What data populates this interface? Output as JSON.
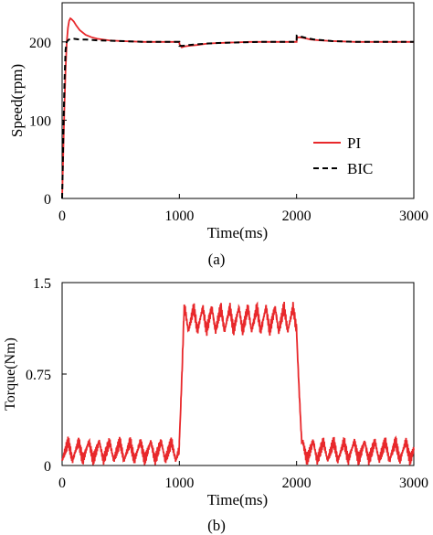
{
  "chart_data": [
    {
      "type": "line",
      "caption": "(a)",
      "xlabel": "Time(ms)",
      "ylabel": "Speed(rpm)",
      "xlim": [
        0,
        3000
      ],
      "ylim": [
        0,
        250
      ],
      "xticks": [
        0,
        1000,
        2000,
        3000
      ],
      "xtick_labels": [
        "0",
        "1000",
        "2000",
        "3000"
      ],
      "yticks": [
        0,
        100,
        200
      ],
      "ytick_labels": [
        "0",
        "100",
        "200"
      ],
      "grid": false,
      "legend": "lower-right",
      "series": [
        {
          "name": "PI",
          "color": "#e8282b",
          "style": "solid",
          "x": [
            0,
            10,
            20,
            30,
            40,
            50,
            60,
            70,
            80,
            100,
            120,
            150,
            200,
            250,
            300,
            400,
            500,
            700,
            1000,
            1001,
            1020,
            1040,
            1080,
            1150,
            1250,
            1400,
            1600,
            2000,
            2001,
            2020,
            2060,
            2120,
            2200,
            2300,
            2500,
            2800,
            3000
          ],
          "y": [
            0,
            60,
            120,
            165,
            200,
            218,
            227,
            230,
            229,
            226,
            221,
            215,
            209,
            206,
            204,
            202,
            201,
            200,
            200,
            197,
            193,
            194,
            195,
            196,
            198,
            199,
            200,
            200,
            205,
            206,
            205,
            203,
            202,
            201,
            200,
            200,
            200
          ]
        },
        {
          "name": "BIC",
          "color": "#000000",
          "style": "dashed",
          "x": [
            0,
            10,
            20,
            30,
            40,
            50,
            60,
            80,
            100,
            150,
            200,
            300,
            500,
            700,
            1000,
            1001,
            1030,
            1080,
            1150,
            1250,
            1400,
            1700,
            2000,
            2001,
            2030,
            2080,
            2150,
            2300,
            2500,
            2800,
            3000
          ],
          "y": [
            0,
            80,
            150,
            190,
            200,
            202,
            203,
            204,
            204,
            203,
            203,
            202,
            201,
            200,
            200,
            195,
            195,
            196,
            197,
            198,
            199,
            200,
            200,
            208,
            207,
            205,
            203,
            201,
            200,
            200,
            200
          ]
        }
      ]
    },
    {
      "type": "line",
      "caption": "(b)",
      "xlabel": "Time(ms)",
      "ylabel": "Torque(Nm)",
      "xlim": [
        0,
        3000
      ],
      "ylim": [
        0,
        1.5
      ],
      "xticks": [
        0,
        1000,
        2000,
        3000
      ],
      "xtick_labels": [
        "0",
        "1000",
        "2000",
        "3000"
      ],
      "yticks": [
        0,
        0.75,
        1.5
      ],
      "ytick_labels": [
        "0",
        "0.75",
        "1.5"
      ],
      "grid": false,
      "series": [
        {
          "name": "",
          "color": "#e8282b",
          "style": "solid",
          "segments": [
            {
              "x_start": 0,
              "x_end": 1000,
              "base": 0.04,
              "amplitude": 0.16,
              "period": 88
            },
            {
              "x_start": 1000,
              "x_end": 2000,
              "base": 1.1,
              "amplitude": 0.2,
              "period": 77
            },
            {
              "x_start": 2000,
              "x_end": 3000,
              "base": 0.04,
              "amplitude": 0.16,
              "period": 88
            }
          ],
          "x": [
            0,
            300,
            600,
            990,
            1000,
            1015,
            1030,
            1060,
            1100,
            1500,
            1990,
            2000,
            2020,
            2045,
            2075,
            2500,
            3000
          ],
          "y": [
            0.1,
            0.15,
            0.15,
            0.2,
            0.5,
            1.0,
            1.15,
            1.3,
            1.25,
            1.2,
            1.2,
            0.8,
            0.35,
            0.05,
            0.1,
            0.15,
            0.2
          ]
        }
      ]
    }
  ]
}
